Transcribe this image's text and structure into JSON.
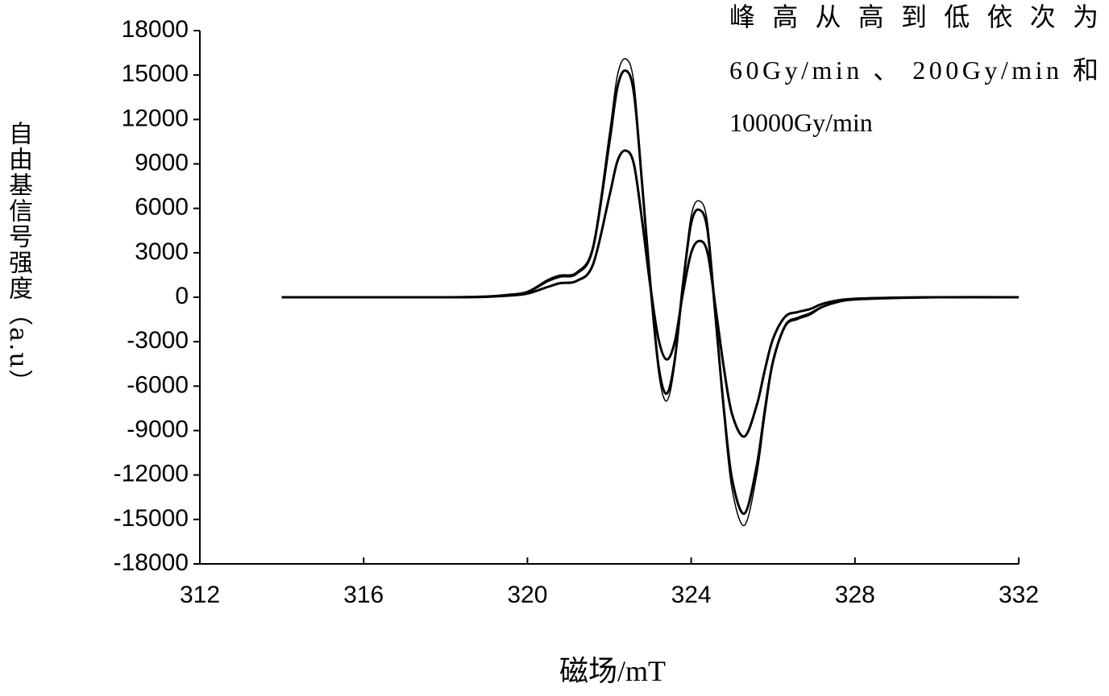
{
  "chart_data": {
    "type": "line",
    "annotation": [
      "峰高从高到低依次为",
      "60Gy/min 、 200Gy/min 和",
      "10000Gy/min"
    ],
    "x_label": "磁场/mT",
    "y_label": "自由基信号强度（a.u）",
    "x": [
      314,
      316,
      318,
      319,
      319.5,
      320,
      320.5,
      320.8,
      321.2,
      321.6,
      322,
      322.2,
      322.4,
      322.6,
      322.8,
      323,
      323.2,
      323.4,
      323.6,
      323.8,
      324,
      324.2,
      324.4,
      324.6,
      324.8,
      325,
      325.3,
      325.6,
      325.8,
      326,
      326.3,
      326.6,
      326.9,
      327.2,
      327.6,
      328,
      329,
      330,
      332
    ],
    "series": [
      {
        "color": "#000000",
        "values": [
          0,
          0,
          0,
          50,
          150,
          400,
          1200,
          1500,
          1700,
          3500,
          11000,
          15000,
          16100,
          14500,
          8000,
          1000,
          -5000,
          -7000,
          -4500,
          1000,
          5500,
          6500,
          5000,
          -1500,
          -8000,
          -13000,
          -15400,
          -12000,
          -8000,
          -4500,
          -2000,
          -1500,
          -1200,
          -700,
          -300,
          -150,
          -50,
          0,
          0
        ]
      },
      {
        "color": "#000000",
        "values": [
          0,
          0,
          0,
          50,
          150,
          350,
          1100,
          1400,
          1600,
          3300,
          10400,
          14200,
          15300,
          13800,
          7700,
          1000,
          -4600,
          -6500,
          -4200,
          900,
          5000,
          5900,
          4500,
          -1500,
          -7600,
          -12300,
          -14600,
          -11400,
          -7600,
          -4300,
          -1900,
          -1400,
          -1100,
          -650,
          -300,
          -150,
          -50,
          0,
          0
        ]
      },
      {
        "color": "#000000",
        "values": [
          0,
          0,
          0,
          30,
          100,
          250,
          700,
          950,
          1100,
          2200,
          6800,
          9200,
          9900,
          9000,
          5200,
          800,
          -2800,
          -4200,
          -3000,
          300,
          3000,
          3800,
          3000,
          -800,
          -4800,
          -7900,
          -9400,
          -7300,
          -4900,
          -2800,
          -1300,
          -1000,
          -800,
          -450,
          -200,
          -100,
          -30,
          0,
          0
        ]
      }
    ],
    "xlim": [
      312,
      332
    ],
    "xticks": [
      312,
      316,
      320,
      324,
      328,
      332
    ],
    "ylim": [
      -18000,
      18000
    ],
    "yticks": [
      -18000,
      -15000,
      -12000,
      -9000,
      -6000,
      -3000,
      0,
      3000,
      6000,
      9000,
      12000,
      15000,
      18000
    ]
  }
}
